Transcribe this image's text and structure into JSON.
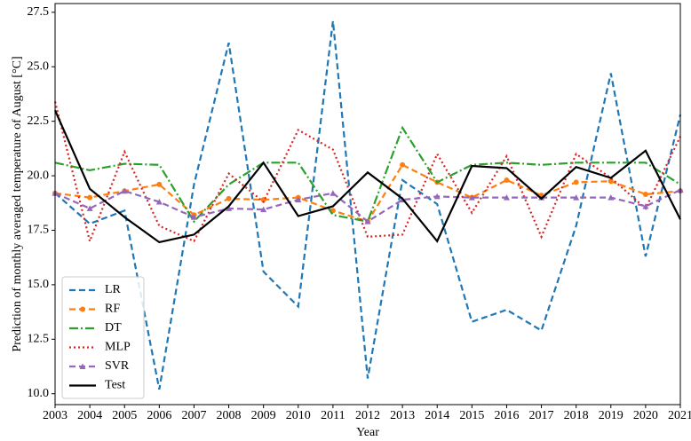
{
  "chart_data": {
    "type": "line",
    "xlabel": "Year",
    "ylabel": "Prediction of monthly averaged temperature of August [°C]",
    "x": [
      2003,
      2004,
      2005,
      2006,
      2007,
      2008,
      2009,
      2010,
      2011,
      2012,
      2013,
      2014,
      2015,
      2016,
      2017,
      2018,
      2019,
      2020,
      2021
    ],
    "xlim": [
      2003,
      2021
    ],
    "xticks": [
      2003,
      2004,
      2005,
      2006,
      2007,
      2008,
      2009,
      2010,
      2011,
      2012,
      2013,
      2014,
      2015,
      2016,
      2017,
      2018,
      2019,
      2020,
      2021
    ],
    "ylim": [
      9.5,
      27.9
    ],
    "yticks": [
      {
        "value": 10,
        "label": "10.0"
      },
      12.5,
      {
        "value": 15,
        "label": "15.0"
      },
      17.5,
      {
        "value": 20,
        "label": "20.0"
      },
      22.5,
      {
        "value": 25,
        "label": "25.0"
      },
      27.5
    ],
    "legend": "lower left",
    "series": [
      {
        "name": "LR",
        "color": "#1f77b4",
        "linestyle": "dashed",
        "values": [
          19.2,
          17.8,
          18.4,
          10.2,
          19.6,
          26.1,
          15.6,
          14.0,
          27.1,
          10.7,
          19.8,
          18.7,
          13.3,
          13.85,
          12.9,
          17.7,
          24.7,
          16.3,
          22.8
        ]
      },
      {
        "name": "RF",
        "color": "#ff7f0e",
        "linestyle": "dashed",
        "marker": "circle",
        "values": [
          19.2,
          19.0,
          19.3,
          19.6,
          18.2,
          18.95,
          18.9,
          19.0,
          18.4,
          17.9,
          20.5,
          19.7,
          19.0,
          19.8,
          19.1,
          19.7,
          19.75,
          19.15,
          19.3
        ]
      },
      {
        "name": "DT",
        "color": "#2ca02c",
        "linestyle": "dashdot",
        "values": [
          20.6,
          20.25,
          20.55,
          20.5,
          17.9,
          19.6,
          20.6,
          20.6,
          18.2,
          17.9,
          22.2,
          19.7,
          20.5,
          20.6,
          20.5,
          20.6,
          20.6,
          20.6,
          19.6
        ]
      },
      {
        "name": "MLP",
        "color": "#d62728",
        "linestyle": "dotted",
        "values": [
          23.4,
          17.0,
          21.1,
          17.7,
          17.0,
          20.1,
          18.8,
          22.1,
          21.2,
          17.2,
          17.3,
          21.0,
          18.3,
          20.9,
          17.2,
          21.0,
          19.9,
          18.5,
          21.8
        ]
      },
      {
        "name": "SVR",
        "color": "#9467bd",
        "linestyle": "dashed",
        "marker": "triangle",
        "values": [
          19.2,
          18.5,
          19.3,
          18.8,
          18.1,
          18.5,
          18.45,
          18.9,
          19.2,
          17.9,
          18.9,
          19.05,
          19.0,
          19.0,
          19.0,
          19.0,
          19.0,
          18.6,
          19.35
        ]
      },
      {
        "name": "Test",
        "color": "#000000",
        "linestyle": "solid",
        "values": [
          23.0,
          19.4,
          18.1,
          16.95,
          17.3,
          18.6,
          20.6,
          18.15,
          18.6,
          20.15,
          18.95,
          17.0,
          20.45,
          20.35,
          18.95,
          20.4,
          19.9,
          21.15,
          18.0
        ]
      }
    ]
  }
}
